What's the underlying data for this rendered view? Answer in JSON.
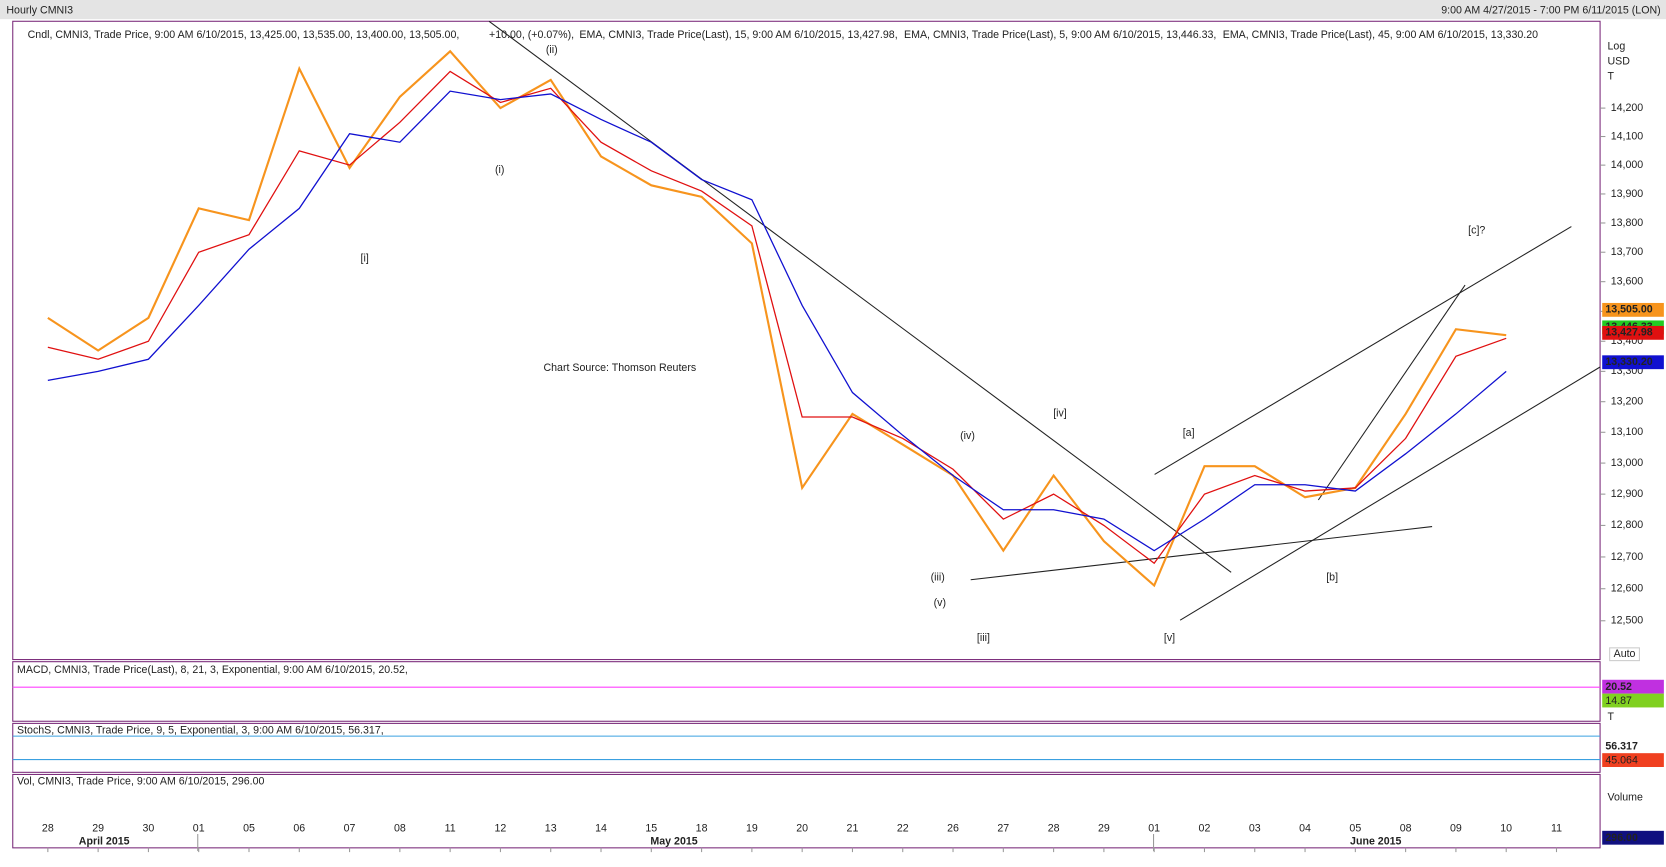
{
  "header": {
    "title": "Hourly CMNI3",
    "range": "9:00 AM 4/27/2015 - 7:00 PM 6/11/2015 (LON)"
  },
  "chart_data": {
    "type": "line",
    "legend": {
      "candle": "Cndl, CMNI3, Trade Price, 9:00 AM 6/10/2015, 13,425.00, 13,535.00, 13,400.00, 13,505.00,",
      "change": "+10.00, (+0.07%),",
      "ema5": "EMA, CMNI3, Trade Price(Last), 5, 9:00 AM 6/10/2015, 13,446.33,"
    },
    "categories": [
      "28",
      "29",
      "30",
      "01",
      "05",
      "06",
      "07",
      "08",
      "11",
      "12",
      "13",
      "14",
      "15",
      "18",
      "19",
      "20",
      "21",
      "22",
      "26",
      "27",
      "28",
      "29",
      "01",
      "02",
      "03",
      "04",
      "05",
      "08",
      "09",
      "10",
      "11"
    ],
    "months": [
      "April 2015",
      "May 2015",
      "June 2015"
    ],
    "log_scale": true,
    "axis_labels": [
      "Log",
      "USD",
      "T"
    ],
    "auto_label": "Auto",
    "ylim": [
      12380,
      14510
    ],
    "yticks": [
      {
        "value": 12500,
        "label": "12,500"
      },
      {
        "value": 12600,
        "label": "12,600"
      },
      {
        "value": 12700,
        "label": "12,700"
      },
      {
        "value": 12800,
        "label": "12,800"
      },
      {
        "value": 12900,
        "label": "12,900"
      },
      {
        "value": 13000,
        "label": "13,000"
      },
      {
        "value": 13100,
        "label": "13,100"
      },
      {
        "value": 13200,
        "label": "13,200"
      },
      {
        "value": 13300,
        "label": "13,300"
      },
      {
        "value": 13400,
        "label": "13,400"
      },
      {
        "value": 13500,
        "label": "13,500"
      },
      {
        "value": 13600,
        "label": "13,600"
      },
      {
        "value": 13700,
        "label": "13,700"
      },
      {
        "value": 13800,
        "label": "13,800"
      },
      {
        "value": 13900,
        "label": "13,900"
      },
      {
        "value": 14000,
        "label": "14,000"
      },
      {
        "value": 14100,
        "label": "14,100"
      },
      {
        "value": 14200,
        "label": "14,200"
      }
    ],
    "series": [
      {
        "name": "Cndl, CMNI3, Trade Price",
        "color": "#f7941d",
        "last": 13505,
        "last_label": "13,505.00",
        "values": [
          13478,
          13369,
          13478,
          13850,
          13810,
          14340,
          13990,
          14240,
          14402,
          14200,
          14300,
          14030,
          13930,
          13890,
          13730,
          12920,
          13160,
          13060,
          12960,
          12720,
          12960,
          12750,
          12610,
          12990,
          12990,
          12890,
          12920,
          13160,
          13440,
          13420,
          null
        ]
      },
      {
        "name": "EMA, CMNI3, Trade Price(Last), 15, 9:00 AM 6/10/2015, 13,427.98,",
        "color": "#e01010",
        "last": 13427.98,
        "last_label": "13,427.98",
        "values": [
          13380,
          13340,
          13400,
          13700,
          13760,
          14050,
          14000,
          14150,
          14330,
          14220,
          14270,
          14080,
          13980,
          13910,
          13790,
          13150,
          13150,
          13080,
          12980,
          12820,
          12900,
          12800,
          12680,
          12900,
          12960,
          12910,
          12920,
          13080,
          13350,
          13410,
          null
        ]
      },
      {
        "name": "EMA, CMNI3, Trade Price(Last), 45, 9:00 AM 6/10/2015, 13,330.20",
        "color": "#1010d0",
        "last": 13330.2,
        "last_label": "13,330.20",
        "values": [
          13270,
          13300,
          13340,
          13520,
          13710,
          13850,
          14110,
          14080,
          14260,
          14230,
          14250,
          14160,
          14080,
          13950,
          13880,
          13520,
          13230,
          13090,
          12960,
          12850,
          12850,
          12820,
          12720,
          12820,
          12930,
          12930,
          12910,
          13030,
          13160,
          13300,
          null
        ]
      }
    ],
    "ema5_last": {
      "value": 13446.33,
      "label": "13,446.33",
      "color": "#22cc22"
    },
    "annotations": [
      "[i]",
      "(i)",
      "(ii)",
      "(iii)",
      "(iv)",
      "(v)",
      "[iii]",
      "[iv]",
      "[v]",
      "[a]",
      "[b]",
      "[c]?",
      "Chart Source: Thomson Reuters"
    ]
  },
  "panels": [
    {
      "label": "MACD, CMNI3, Trade Price(Last), 8, 21, 3, Exponential, 9:00 AM 6/10/2015, 20.52,",
      "label2": "14.87",
      "boxes": [
        "20.52",
        "14.87"
      ],
      "axis": "T"
    },
    {
      "label": "StochS, CMNI3, Trade Price, 9, 5, Exponential, 3, 9:00 AM 6/10/2015, 56.317,",
      "label2": "45.064",
      "boxes": [
        "56.317",
        "45.064"
      ]
    },
    {
      "label": "Vol, CMNI3, Trade Price, 9:00 AM 6/10/2015, 296.00",
      "axis": "Volume",
      "boxes": [
        "296.00"
      ]
    }
  ]
}
